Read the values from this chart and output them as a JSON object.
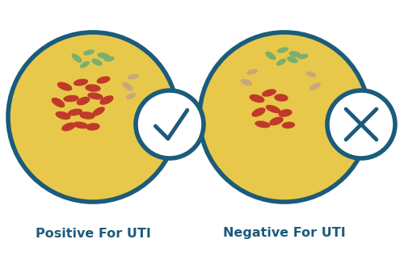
{
  "bg_color": "#ffffff",
  "dish_color": "#E8C84A",
  "dish_edge_color": "#1B5B7B",
  "dish_edge_lw": 4,
  "badge_bg": "#ffffff",
  "badge_edge": "#1B5B7B",
  "badge_lw": 4,
  "symbol_color": "#1B5B7B",
  "red_color": "#C0392B",
  "green_color": "#7BAF6E",
  "tan_color": "#C8A87A",
  "label_color": "#1B5B7B",
  "label_fontsize": 11.5,
  "left_label": "Positive For UTI",
  "right_label": "Negative For UTI",
  "fig_w": 5.0,
  "fig_h": 3.17,
  "dpi": 100
}
